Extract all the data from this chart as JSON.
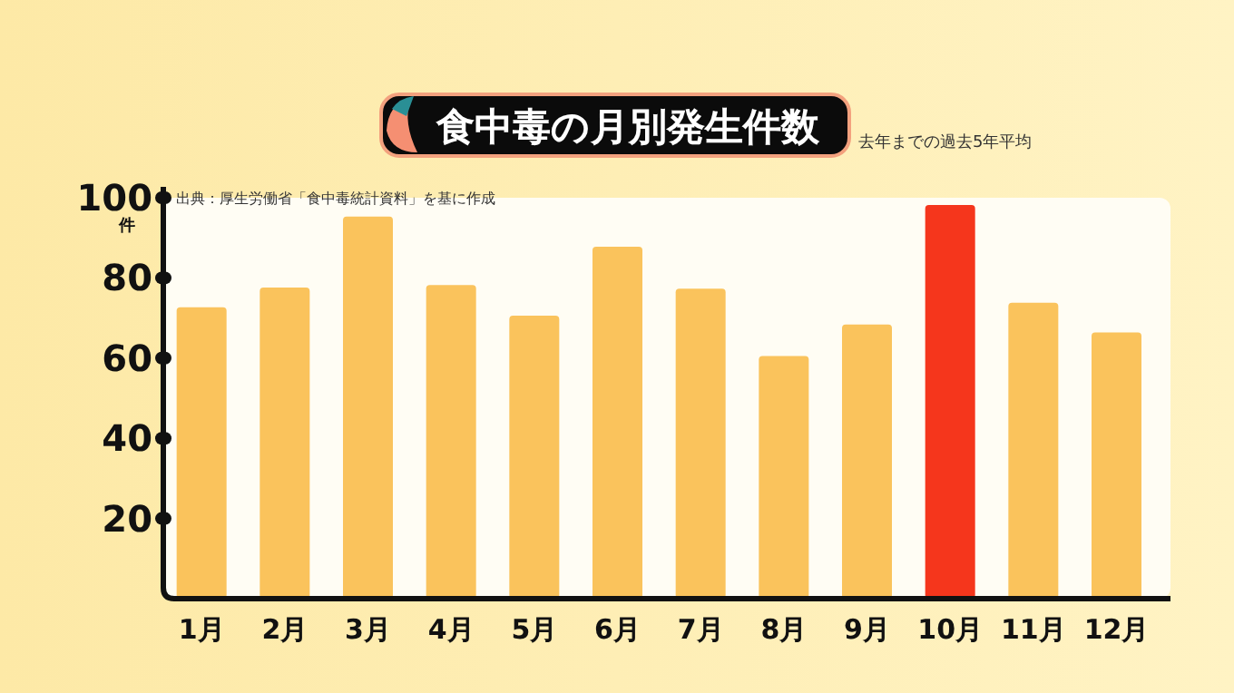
{
  "chart_data": {
    "type": "bar",
    "title": "食中毒の月別発生件数",
    "subtitle": "去年までの過去5年平均",
    "ylabel": "件",
    "annotations": [
      "出典：厚生労働省「食中毒統計資料」を基に作成"
    ],
    "categories": [
      "1月",
      "2月",
      "3月",
      "4月",
      "5月",
      "6月",
      "7月",
      "8月",
      "9月",
      "10月",
      "11月",
      "12月"
    ],
    "values": [
      72.7,
      77.6,
      95.3,
      78.2,
      70.6,
      87.8,
      77.3,
      60.5,
      68.4,
      98.2,
      73.8,
      66.4
    ],
    "colors": [
      "#fac35c",
      "#fac35c",
      "#fac35c",
      "#fac35c",
      "#fac35c",
      "#fac35c",
      "#fac35c",
      "#fac35c",
      "#fac35c",
      "#f5361c",
      "#fac35c",
      "#fac35c"
    ],
    "ylim": [
      0,
      100
    ],
    "yticks": [
      20,
      40,
      60,
      80,
      100
    ],
    "grid": false
  }
}
